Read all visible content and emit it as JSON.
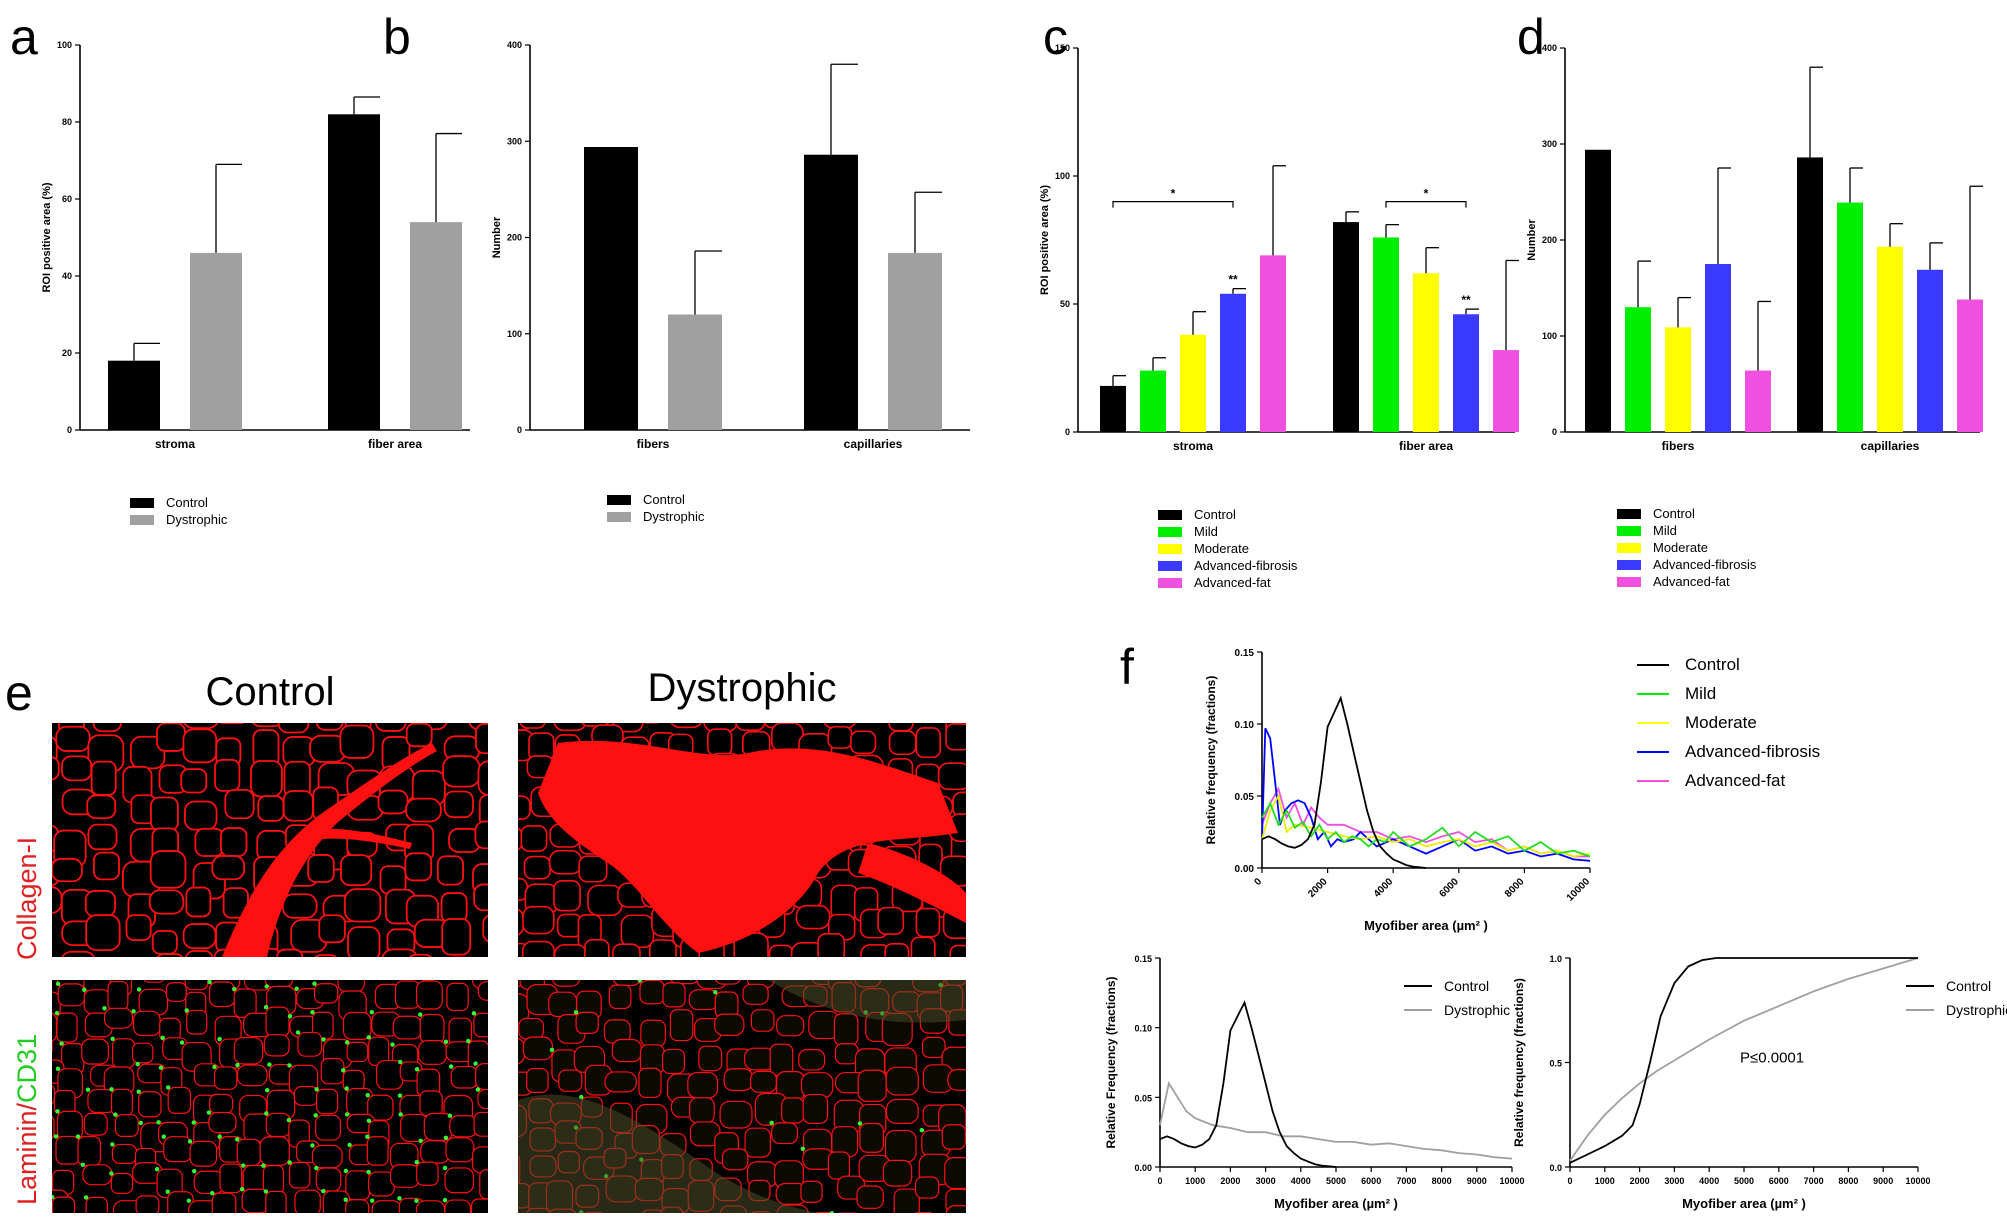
{
  "panels": {
    "a": "a",
    "b": "b",
    "c": "c",
    "d": "d",
    "e": "e",
    "f": "f"
  },
  "colors": {
    "Control": "#000000",
    "Dystrophic": "#a0a0a0",
    "Mild": "#00ee00",
    "Moderate": "#ffff00",
    "Advanced-fibrosis": "#3a3aff",
    "Advanced-fat": "#f050e0"
  },
  "chart_data": [
    {
      "id": "a",
      "type": "bar",
      "categories": [
        "stroma",
        "fiber area"
      ],
      "ylabel": "ROI positive area  (%)",
      "ylim": [
        0,
        100
      ],
      "yticks": [
        0,
        20,
        40,
        60,
        80,
        100
      ],
      "series": [
        {
          "name": "Control",
          "values": [
            18,
            82
          ],
          "err": [
            4.5,
            4.5
          ]
        },
        {
          "name": "Dystrophic",
          "values": [
            46,
            54
          ],
          "err": [
            23,
            23
          ]
        }
      ]
    },
    {
      "id": "b",
      "type": "bar",
      "categories": [
        "fibers",
        "capillaries"
      ],
      "ylabel": "Number",
      "ylim": [
        0,
        400
      ],
      "yticks": [
        0,
        100,
        200,
        300,
        400
      ],
      "series": [
        {
          "name": "Control",
          "values": [
            294,
            286
          ],
          "err": [
            0,
            94
          ]
        },
        {
          "name": "Dystrophic",
          "values": [
            120,
            184
          ],
          "err": [
            66,
            63
          ]
        }
      ]
    },
    {
      "id": "c",
      "type": "bar",
      "categories": [
        "stroma",
        "fiber area"
      ],
      "ylabel": "ROI positive area (%)",
      "ylim": [
        0,
        150
      ],
      "yticks": [
        0,
        50,
        100,
        150
      ],
      "series": [
        {
          "name": "Control",
          "values": [
            18,
            82
          ],
          "err": [
            4,
            4
          ]
        },
        {
          "name": "Mild",
          "values": [
            24,
            76
          ],
          "err": [
            5,
            5
          ]
        },
        {
          "name": "Moderate",
          "values": [
            38,
            62
          ],
          "err": [
            9,
            10
          ]
        },
        {
          "name": "Advanced-fibrosis",
          "values": [
            54,
            46
          ],
          "err": [
            2,
            2
          ]
        },
        {
          "name": "Advanced-fat",
          "values": [
            69,
            32
          ],
          "err": [
            35,
            35
          ]
        }
      ],
      "annotations": {
        "sig": "*",
        "sig2": "**"
      }
    },
    {
      "id": "d",
      "type": "bar",
      "categories": [
        "fibers",
        "capillaries"
      ],
      "ylabel": "Number",
      "ylim": [
        0,
        400
      ],
      "yticks": [
        0,
        100,
        200,
        300,
        400
      ],
      "series": [
        {
          "name": "Control",
          "values": [
            294,
            286
          ],
          "err": [
            0,
            94
          ]
        },
        {
          "name": "Mild",
          "values": [
            130,
            239
          ],
          "err": [
            48,
            36
          ]
        },
        {
          "name": "Moderate",
          "values": [
            109,
            193
          ],
          "err": [
            31,
            24
          ]
        },
        {
          "name": "Advanced-fibrosis",
          "values": [
            175,
            169
          ],
          "err": [
            100,
            28
          ]
        },
        {
          "name": "Advanced-fat",
          "values": [
            64,
            138
          ],
          "err": [
            72,
            118
          ]
        }
      ]
    },
    {
      "id": "f_top",
      "type": "line",
      "xlabel": "Myofiber area (µm² )",
      "ylabel": "Relative frequency (fractions)",
      "xlim": [
        0,
        10000
      ],
      "ylim": [
        0,
        0.15
      ],
      "xticks": [
        0,
        2000,
        4000,
        6000,
        8000,
        10000
      ],
      "yticks": [
        "0.00",
        "0.05",
        "0.10",
        "0.15"
      ],
      "series": [
        {
          "name": "Control",
          "x": [
            0,
            200,
            400,
            600,
            800,
            1000,
            1200,
            1400,
            1600,
            1800,
            2000,
            2200,
            2400,
            2600,
            2800,
            3000,
            3200,
            3400,
            3600,
            3800,
            4000,
            4200,
            4400,
            4600,
            4800,
            5000
          ],
          "y": [
            0.02,
            0.022,
            0.02,
            0.017,
            0.015,
            0.014,
            0.016,
            0.02,
            0.03,
            0.06,
            0.098,
            0.108,
            0.118,
            0.1,
            0.08,
            0.06,
            0.04,
            0.025,
            0.015,
            0.01,
            0.006,
            0.004,
            0.002,
            0.001,
            0.0005,
            0
          ]
        },
        {
          "name": "Mild",
          "x": [
            0,
            250,
            500,
            750,
            1000,
            1250,
            1500,
            1750,
            2000,
            2250,
            2500,
            2750,
            3000,
            3250,
            3500,
            3750,
            4000,
            4500,
            5000,
            5500,
            6000,
            6500,
            7000,
            7500,
            8000,
            8500,
            9000,
            9500,
            10000
          ],
          "y": [
            0.035,
            0.045,
            0.03,
            0.04,
            0.028,
            0.032,
            0.022,
            0.03,
            0.02,
            0.025,
            0.018,
            0.022,
            0.02,
            0.015,
            0.02,
            0.018,
            0.025,
            0.015,
            0.02,
            0.028,
            0.015,
            0.025,
            0.018,
            0.022,
            0.012,
            0.018,
            0.01,
            0.012,
            0.008
          ]
        },
        {
          "name": "Moderate",
          "x": [
            0,
            250,
            500,
            750,
            1000,
            1500,
            2000,
            2500,
            3000,
            3500,
            4000,
            4500,
            5000,
            5500,
            6000,
            6500,
            7000,
            7500,
            8000,
            8500,
            9000,
            9500,
            10000
          ],
          "y": [
            0.02,
            0.04,
            0.05,
            0.025,
            0.03,
            0.028,
            0.025,
            0.022,
            0.02,
            0.022,
            0.018,
            0.02,
            0.015,
            0.018,
            0.02,
            0.015,
            0.018,
            0.012,
            0.015,
            0.01,
            0.012,
            0.008,
            0.01
          ]
        },
        {
          "name": "Advanced-fibrosis",
          "x": [
            0,
            100,
            250,
            400,
            550,
            700,
            900,
            1100,
            1300,
            1500,
            1700,
            1900,
            2100,
            2300,
            2500,
            2800,
            3000,
            3500,
            4000,
            4500,
            5000,
            5500,
            6000,
            6500,
            7000,
            7500,
            8000,
            8500,
            9000,
            9500,
            10000
          ],
          "y": [
            0.02,
            0.097,
            0.09,
            0.06,
            0.03,
            0.04,
            0.045,
            0.047,
            0.045,
            0.035,
            0.02,
            0.025,
            0.015,
            0.02,
            0.018,
            0.02,
            0.025,
            0.015,
            0.02,
            0.015,
            0.01,
            0.015,
            0.02,
            0.012,
            0.015,
            0.01,
            0.012,
            0.008,
            0.01,
            0.006,
            0.005
          ]
        },
        {
          "name": "Advanced-fat",
          "x": [
            0,
            250,
            500,
            750,
            1000,
            1250,
            1500,
            1750,
            2000,
            2500,
            3000,
            3500,
            4000,
            4500,
            5000,
            5500,
            6000,
            6500,
            7000,
            7500,
            8000,
            8500,
            9000,
            9500,
            10000
          ],
          "y": [
            0.03,
            0.045,
            0.055,
            0.035,
            0.045,
            0.03,
            0.042,
            0.035,
            0.03,
            0.03,
            0.025,
            0.025,
            0.02,
            0.022,
            0.018,
            0.022,
            0.025,
            0.018,
            0.02,
            0.012,
            0.015,
            0.01,
            0.012,
            0.008,
            0.008
          ]
        }
      ]
    },
    {
      "id": "f_bl",
      "type": "line",
      "xlabel": "Myofiber area (µm² )",
      "ylabel": "Relative Frequency (fractions)",
      "xlim": [
        0,
        10000
      ],
      "ylim": [
        0,
        0.15
      ],
      "xticks": [
        0,
        1000,
        2000,
        3000,
        4000,
        5000,
        6000,
        7000,
        8000,
        9000,
        10000
      ],
      "yticks": [
        "0.00",
        "0.05",
        "0.10",
        "0.15"
      ],
      "series": [
        {
          "name": "Control",
          "x": [
            0,
            200,
            400,
            600,
            800,
            1000,
            1200,
            1400,
            1600,
            1800,
            2000,
            2200,
            2400,
            2600,
            2800,
            3000,
            3200,
            3400,
            3600,
            3800,
            4000,
            4200,
            4400,
            4600,
            4800,
            5000
          ],
          "y": [
            0.02,
            0.022,
            0.02,
            0.017,
            0.015,
            0.014,
            0.016,
            0.02,
            0.03,
            0.06,
            0.098,
            0.108,
            0.118,
            0.1,
            0.08,
            0.06,
            0.04,
            0.025,
            0.015,
            0.01,
            0.006,
            0.004,
            0.002,
            0.001,
            0.0005,
            0
          ]
        },
        {
          "name": "Dystrophic",
          "x": [
            0,
            250,
            500,
            750,
            1000,
            1500,
            2000,
            2500,
            3000,
            3500,
            4000,
            4500,
            5000,
            5500,
            6000,
            6500,
            7000,
            7500,
            8000,
            8500,
            9000,
            9500,
            10000
          ],
          "y": [
            0.03,
            0.06,
            0.05,
            0.04,
            0.035,
            0.03,
            0.028,
            0.025,
            0.025,
            0.022,
            0.022,
            0.02,
            0.018,
            0.018,
            0.016,
            0.017,
            0.015,
            0.013,
            0.012,
            0.01,
            0.009,
            0.007,
            0.006
          ]
        }
      ]
    },
    {
      "id": "f_br",
      "type": "line",
      "xlabel": "Myofiber area (µm² )",
      "ylabel": "Relative frequency (fractions)",
      "xlim": [
        0,
        10000
      ],
      "ylim": [
        0,
        1
      ],
      "xticks": [
        0,
        1000,
        2000,
        3000,
        4000,
        5000,
        6000,
        7000,
        8000,
        9000,
        10000
      ],
      "yticks": [
        "0.0",
        "0.5",
        "1.0"
      ],
      "annotation": "P≤0.0001",
      "series": [
        {
          "name": "Control",
          "x": [
            0,
            500,
            1000,
            1500,
            1800,
            2000,
            2300,
            2600,
            3000,
            3400,
            3800,
            4200,
            5000,
            10000
          ],
          "y": [
            0.02,
            0.06,
            0.1,
            0.15,
            0.2,
            0.3,
            0.5,
            0.72,
            0.88,
            0.96,
            0.99,
            1.0,
            1.0,
            1.0
          ]
        },
        {
          "name": "Dystrophic",
          "x": [
            0,
            500,
            1000,
            1500,
            2000,
            2500,
            3000,
            4000,
            5000,
            6000,
            7000,
            8000,
            9000,
            10000
          ],
          "y": [
            0.03,
            0.15,
            0.25,
            0.33,
            0.4,
            0.46,
            0.51,
            0.61,
            0.7,
            0.77,
            0.84,
            0.9,
            0.95,
            1.0
          ]
        }
      ]
    }
  ],
  "micro": {
    "col_control": "Control",
    "col_dystrophic": "Dystrophic",
    "row_collagen": "Collagen-I",
    "row_laminin_a": "Laminin/",
    "row_laminin_b": "CD31"
  }
}
